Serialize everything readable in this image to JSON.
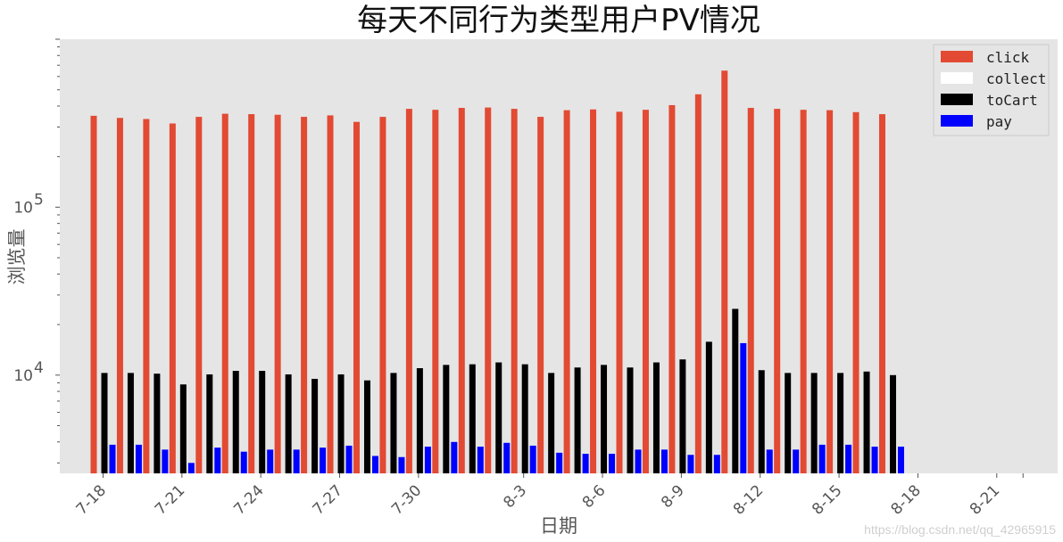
{
  "chart_data": {
    "type": "bar",
    "title": "每天不同行为类型用户PV情况",
    "xlabel": "日期",
    "ylabel": "浏览量",
    "yscale": "log",
    "ylim": [
      2600,
      1000000
    ],
    "categories": [
      "7-18",
      "7-19",
      "7-20",
      "7-21",
      "7-22",
      "7-23",
      "7-24",
      "7-25",
      "7-26",
      "7-27",
      "7-28",
      "7-29",
      "7-30",
      "7-31",
      "8-1",
      "8-2",
      "8-3",
      "8-4",
      "8-5",
      "8-6",
      "8-7",
      "8-8",
      "8-9",
      "8-10",
      "8-11",
      "8-12",
      "8-13",
      "8-14",
      "8-15",
      "8-16",
      "8-17",
      "8-18",
      "8-19",
      "8-20",
      "8-21",
      "8-22"
    ],
    "xticks": [
      "7-18",
      "7-21",
      "7-24",
      "7-27",
      "7-30",
      "8-3",
      "8-6",
      "8-9",
      "8-12",
      "8-15",
      "8-18",
      "8-21"
    ],
    "yticks": [
      {
        "base": "10",
        "exp": "4"
      },
      {
        "base": "10",
        "exp": "5"
      }
    ],
    "series": [
      {
        "name": "click",
        "color": "#e24a33",
        "values": [
          350000,
          340000,
          335000,
          315000,
          345000,
          360000,
          358000,
          355000,
          345000,
          352000,
          322000,
          345000,
          385000,
          380000,
          390000,
          392000,
          385000,
          345000,
          378000,
          382000,
          370000,
          380000,
          405000,
          470000,
          650000,
          390000,
          385000,
          380000,
          378000,
          368000,
          358000,
          null,
          null,
          null,
          null,
          null
        ]
      },
      {
        "name": "collect",
        "color": "#ffffff",
        "values": [
          null,
          null,
          null,
          null,
          null,
          null,
          null,
          null,
          null,
          null,
          null,
          null,
          null,
          null,
          null,
          null,
          null,
          null,
          null,
          null,
          null,
          null,
          null,
          null,
          null,
          null,
          null,
          null,
          null,
          null,
          null,
          null,
          null,
          null,
          null,
          null
        ]
      },
      {
        "name": "toCart",
        "color": "#000000",
        "values": [
          10300,
          10300,
          10200,
          8800,
          10100,
          10600,
          10600,
          10100,
          9500,
          10100,
          9300,
          10300,
          11000,
          11500,
          11600,
          11900,
          11600,
          10300,
          11100,
          11500,
          11100,
          11900,
          12400,
          15800,
          24800,
          10700,
          10300,
          10300,
          10300,
          10500,
          10000,
          null,
          null,
          null,
          null,
          null
        ]
      },
      {
        "name": "pay",
        "color": "#0000ff",
        "values": [
          3850,
          3850,
          3600,
          3000,
          3700,
          3500,
          3600,
          3600,
          3700,
          3800,
          3300,
          3250,
          3750,
          4000,
          3750,
          3950,
          3800,
          3450,
          3400,
          3400,
          3600,
          3600,
          3350,
          3350,
          15500,
          3600,
          3600,
          3850,
          3850,
          3750,
          3750,
          null,
          null,
          null,
          null,
          null
        ]
      }
    ],
    "legend": "top-right",
    "style": "ggplot",
    "grid": false
  },
  "watermark": "https://blog.csdn.net/qq_42965915"
}
